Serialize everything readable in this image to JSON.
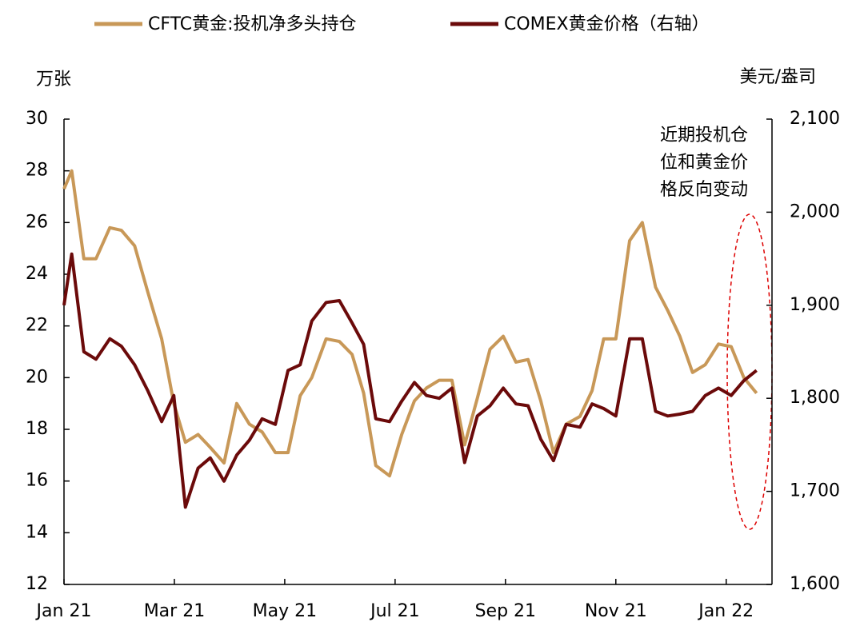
{
  "chart_data": {
    "type": "line",
    "y_label": "万张",
    "y2_label": "美元/盎司",
    "annotation": [
      "近期投机仓",
      "位和黄金价",
      "格反向变动"
    ],
    "legend": "top",
    "x": [
      0,
      0.14,
      0.36,
      0.58,
      0.83,
      1.04,
      1.28,
      1.52,
      1.77,
      1.99,
      2.2,
      2.43,
      2.65,
      2.9,
      3.13,
      3.36,
      3.59,
      3.83,
      4.06,
      4.28,
      4.49,
      4.75,
      4.99,
      5.22,
      5.43,
      5.65,
      5.9,
      6.12,
      6.35,
      6.57,
      6.8,
      7.03,
      7.26,
      7.49,
      7.72,
      7.96,
      8.19,
      8.41,
      8.64,
      8.87,
      9.1,
      9.35,
      9.57,
      9.78,
      10.0,
      10.25,
      10.48,
      10.72,
      10.94,
      11.16,
      11.39,
      11.62,
      11.86,
      12.09,
      12.32,
      12.55
    ],
    "xlim": [
      0,
      12.83
    ],
    "xticks": [
      {
        "value": 0,
        "label": "Jan 21"
      },
      {
        "value": 2,
        "label": "Mar 21"
      },
      {
        "value": 4,
        "label": "May 21"
      },
      {
        "value": 6,
        "label": "Jul 21"
      },
      {
        "value": 8,
        "label": "Sep 21"
      },
      {
        "value": 10,
        "label": "Nov 21"
      },
      {
        "value": 12,
        "label": "Jan 22"
      }
    ],
    "ylim": [
      12,
      30
    ],
    "yticks": [
      12,
      14,
      16,
      18,
      20,
      22,
      24,
      26,
      28,
      30
    ],
    "y2lim": [
      1600,
      2100
    ],
    "y2ticks": [
      {
        "value": 1600,
        "label": "1,600"
      },
      {
        "value": 1700,
        "label": "1,700"
      },
      {
        "value": 1800,
        "label": "1,800"
      },
      {
        "value": 1900,
        "label": "1,900"
      },
      {
        "value": 2000,
        "label": "2,000"
      },
      {
        "value": 2100,
        "label": "2,100"
      }
    ],
    "series": [
      {
        "name": "CFTC黄金:投机净多头持仓",
        "color": "#C89858",
        "values": [
          27.3,
          28.0,
          24.6,
          24.6,
          25.8,
          25.7,
          25.1,
          23.3,
          21.5,
          19.0,
          17.5,
          17.8,
          17.3,
          16.7,
          19.0,
          18.2,
          17.9,
          17.1,
          17.1,
          19.3,
          20.0,
          21.5,
          21.4,
          20.9,
          19.4,
          16.6,
          16.2,
          17.8,
          19.1,
          19.6,
          19.9,
          19.9,
          17.4,
          19.2,
          21.1,
          21.6,
          20.6,
          20.7,
          19.1,
          17.1,
          18.2,
          18.5,
          19.5,
          21.5,
          21.5,
          25.3,
          26.0,
          23.5,
          22.6,
          21.6,
          20.2,
          20.5,
          21.3,
          21.2,
          20.0,
          19.4
        ]
      },
      {
        "name": "COMEX黄金价格（右轴）",
        "color": "#6B0A0A",
        "axis": "y2",
        "values": [
          1900,
          1955,
          1850,
          1842,
          1864,
          1856,
          1836,
          1808,
          1775,
          1803,
          1683,
          1725,
          1736,
          1711,
          1739,
          1755,
          1778,
          1772,
          1830,
          1836,
          1883,
          1903,
          1905,
          1881,
          1858,
          1778,
          1775,
          1797,
          1817,
          1803,
          1800,
          1811,
          1731,
          1781,
          1792,
          1811,
          1794,
          1792,
          1756,
          1733,
          1772,
          1769,
          1794,
          1789,
          1781,
          1864,
          1864,
          1786,
          1781,
          1783,
          1786,
          1803,
          1811,
          1803,
          1819,
          1830
        ]
      }
    ]
  }
}
